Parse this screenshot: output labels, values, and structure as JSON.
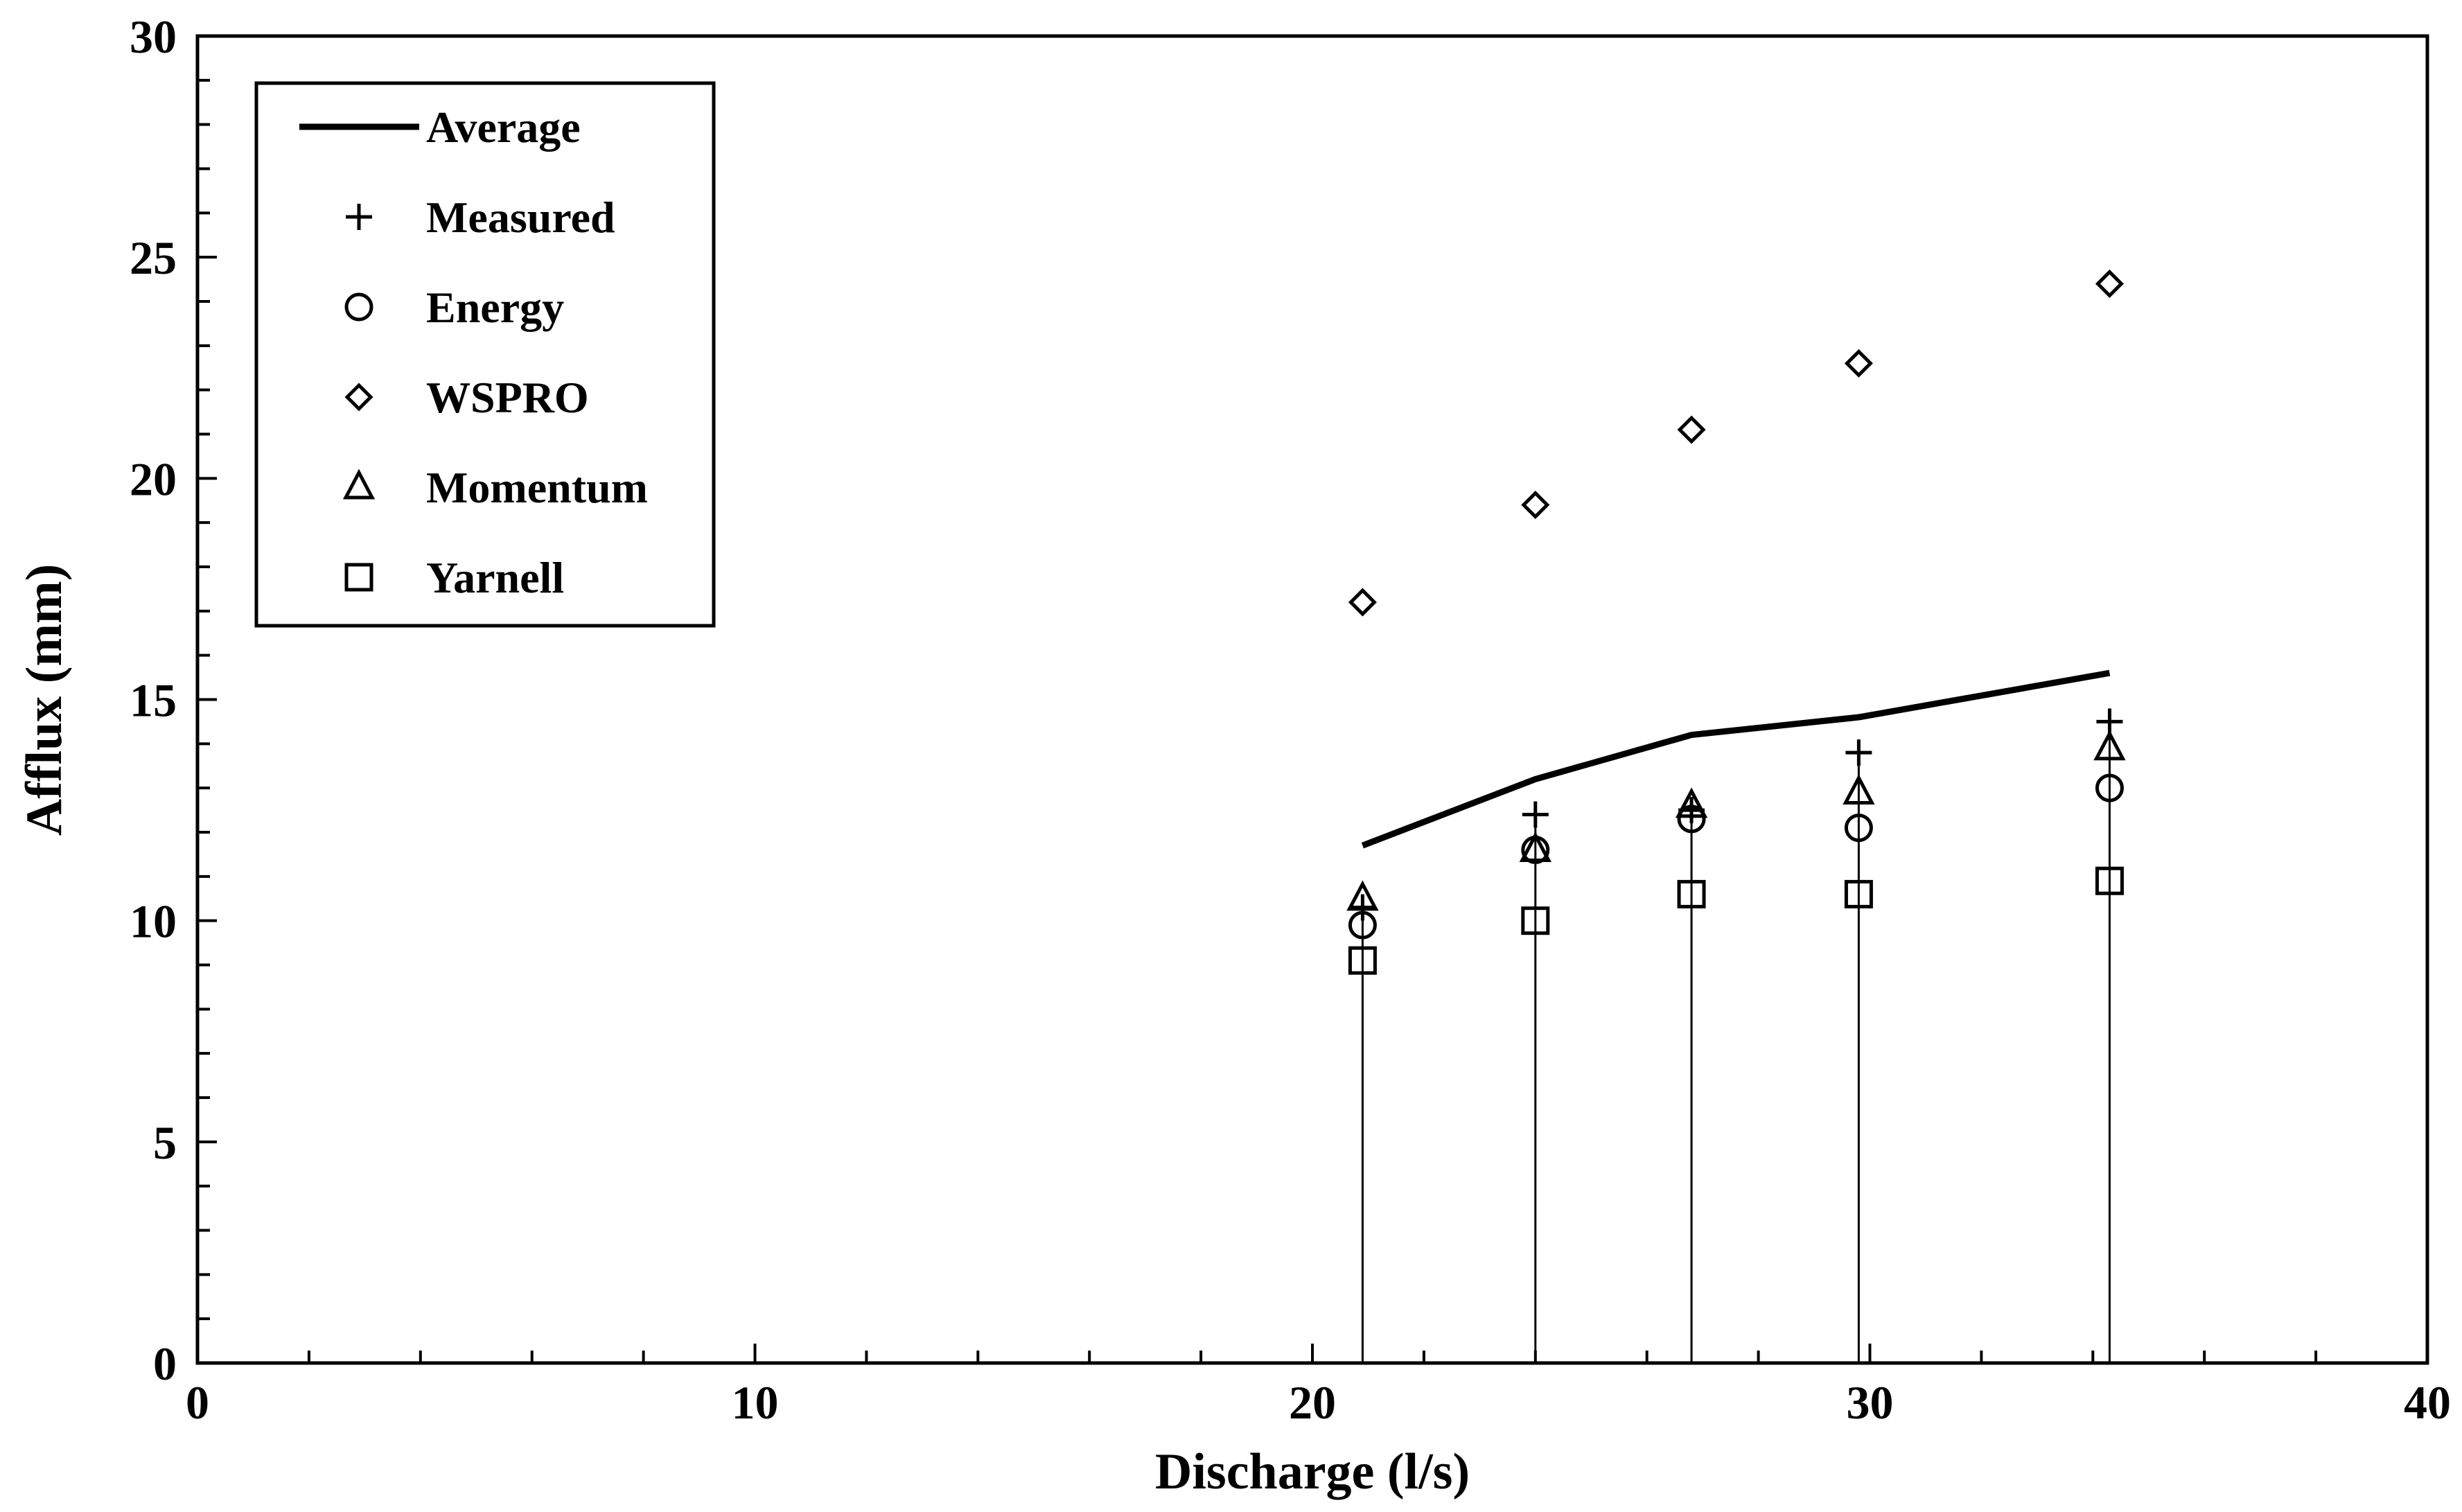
{
  "chart_data": {
    "type": "scatter",
    "title": "",
    "xlabel": "Discharge (l/s)",
    "ylabel": "Afflux (mm)",
    "xlim": [
      0,
      40
    ],
    "ylim": [
      0,
      30
    ],
    "x_ticks": [
      "0",
      "10",
      "20",
      "30",
      "40"
    ],
    "y_ticks": [
      "0",
      "5",
      "10",
      "15",
      "20",
      "25",
      "30"
    ],
    "grid": false,
    "legend_position": "top-left",
    "x": [
      20.9,
      24.0,
      26.8,
      29.8,
      34.3
    ],
    "series": [
      {
        "name": "Average",
        "marker": "line",
        "values": [
          11.7,
          13.2,
          14.2,
          14.6,
          15.6
        ]
      },
      {
        "name": "Measured",
        "marker": "plus",
        "values": [
          10.3,
          12.4,
          12.5,
          13.8,
          14.5
        ]
      },
      {
        "name": "Energy",
        "marker": "circle",
        "values": [
          9.9,
          11.6,
          12.3,
          12.1,
          13.0
        ]
      },
      {
        "name": "WSPRO",
        "marker": "diamond",
        "values": [
          17.2,
          19.4,
          21.1,
          22.6,
          24.4
        ]
      },
      {
        "name": "Momentum",
        "marker": "triangle",
        "values": [
          10.5,
          11.6,
          12.6,
          12.9,
          13.9
        ]
      },
      {
        "name": "Yarnell",
        "marker": "square",
        "values": [
          9.1,
          10.0,
          10.6,
          10.6,
          10.9
        ]
      }
    ],
    "drop_lines": true
  }
}
